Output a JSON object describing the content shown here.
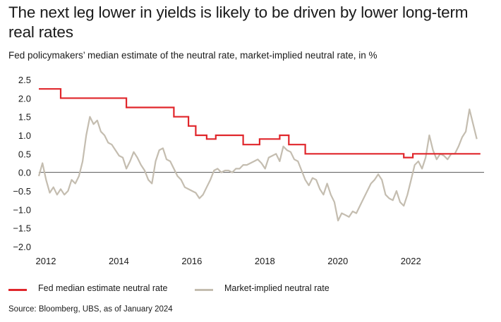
{
  "title": "The next leg lower in yields is likely to be driven by lower long-term real rates",
  "subtitle": "Fed policymakers’ median estimate of the neutral rate, market-implied neutral rate, in %",
  "source": "Source: Bloomberg, UBS, as of January 2024",
  "colors": {
    "fed": "#e0262b",
    "market": "#c4bdb0",
    "zero": "#555555"
  },
  "chart_data": {
    "type": "line",
    "xlim": [
      2012,
      2024.2
    ],
    "ylim": [
      -2.0,
      2.5
    ],
    "yticks": [
      "2.5",
      "2.0",
      "1.5",
      "1.0",
      "0.5",
      "0.0",
      "−0.5",
      "−1.0",
      "−1.5",
      "−2.0"
    ],
    "xticks": [
      "2012",
      "2014",
      "2016",
      "2018",
      "2020",
      "2022"
    ],
    "grid": false,
    "legend_position": "bottom",
    "series": [
      {
        "name": "Fed median estimate neutral rate",
        "kind": "step",
        "x": [
          2012.0,
          2012.6,
          2012.6,
          2014.4,
          2014.4,
          2015.7,
          2015.7,
          2016.1,
          2016.1,
          2016.3,
          2016.3,
          2016.6,
          2016.6,
          2016.85,
          2016.85,
          2017.6,
          2017.6,
          2018.05,
          2018.05,
          2018.6,
          2018.6,
          2018.85,
          2018.85,
          2019.3,
          2019.3,
          2022.0,
          2022.0,
          2022.25,
          2022.25,
          2024.1
        ],
        "y": [
          2.25,
          2.25,
          2.0,
          2.0,
          1.75,
          1.75,
          1.5,
          1.5,
          1.25,
          1.25,
          1.0,
          1.0,
          0.9,
          0.9,
          1.0,
          1.0,
          0.75,
          0.75,
          0.9,
          0.9,
          1.0,
          1.0,
          0.75,
          0.75,
          0.5,
          0.5,
          0.4,
          0.4,
          0.5,
          0.5
        ]
      },
      {
        "name": "Market-implied neutral rate",
        "kind": "line",
        "x": [
          2012.0,
          2012.1,
          2012.2,
          2012.3,
          2012.4,
          2012.5,
          2012.6,
          2012.7,
          2012.8,
          2012.9,
          2013.0,
          2013.1,
          2013.2,
          2013.3,
          2013.4,
          2013.5,
          2013.6,
          2013.7,
          2013.8,
          2013.9,
          2014.0,
          2014.1,
          2014.2,
          2014.3,
          2014.4,
          2014.5,
          2014.6,
          2014.7,
          2014.8,
          2014.9,
          2015.0,
          2015.1,
          2015.2,
          2015.3,
          2015.4,
          2015.5,
          2015.6,
          2015.7,
          2015.8,
          2015.9,
          2016.0,
          2016.1,
          2016.2,
          2016.3,
          2016.4,
          2016.5,
          2016.6,
          2016.7,
          2016.8,
          2016.9,
          2017.0,
          2017.1,
          2017.2,
          2017.3,
          2017.4,
          2017.5,
          2017.6,
          2017.7,
          2017.8,
          2017.9,
          2018.0,
          2018.1,
          2018.2,
          2018.3,
          2018.4,
          2018.5,
          2018.6,
          2018.7,
          2018.8,
          2018.9,
          2019.0,
          2019.1,
          2019.2,
          2019.3,
          2019.4,
          2019.5,
          2019.6,
          2019.7,
          2019.8,
          2019.9,
          2020.0,
          2020.1,
          2020.2,
          2020.3,
          2020.4,
          2020.5,
          2020.6,
          2020.7,
          2020.8,
          2020.9,
          2021.0,
          2021.1,
          2021.2,
          2021.3,
          2021.4,
          2021.5,
          2021.6,
          2021.7,
          2021.8,
          2021.9,
          2022.0,
          2022.1,
          2022.2,
          2022.3,
          2022.4,
          2022.5,
          2022.6,
          2022.7,
          2022.8,
          2022.9,
          2023.0,
          2023.1,
          2023.2,
          2023.3,
          2023.4,
          2023.5,
          2023.6,
          2023.7,
          2023.8,
          2023.9,
          2024.0
        ],
        "y": [
          -0.1,
          0.25,
          -0.2,
          -0.55,
          -0.4,
          -0.6,
          -0.45,
          -0.6,
          -0.5,
          -0.2,
          -0.3,
          -0.1,
          0.3,
          1.0,
          1.5,
          1.3,
          1.4,
          1.1,
          1.0,
          0.8,
          0.75,
          0.6,
          0.45,
          0.4,
          0.1,
          0.3,
          0.55,
          0.4,
          0.2,
          0.05,
          -0.2,
          -0.3,
          0.3,
          0.6,
          0.65,
          0.35,
          0.3,
          0.1,
          -0.1,
          -0.2,
          -0.4,
          -0.45,
          -0.5,
          -0.55,
          -0.7,
          -0.6,
          -0.4,
          -0.2,
          0.05,
          0.1,
          0.0,
          0.05,
          0.05,
          0.0,
          0.1,
          0.1,
          0.2,
          0.2,
          0.25,
          0.3,
          0.35,
          0.25,
          0.1,
          0.4,
          0.45,
          0.5,
          0.3,
          0.7,
          0.6,
          0.55,
          0.35,
          0.3,
          0.05,
          -0.2,
          -0.35,
          -0.15,
          -0.2,
          -0.45,
          -0.6,
          -0.3,
          -0.6,
          -0.8,
          -1.3,
          -1.1,
          -1.15,
          -1.2,
          -1.05,
          -1.1,
          -0.9,
          -0.7,
          -0.5,
          -0.3,
          -0.2,
          -0.05,
          -0.2,
          -0.6,
          -0.7,
          -0.75,
          -0.5,
          -0.8,
          -0.9,
          -0.6,
          -0.2,
          0.2,
          0.3,
          0.1,
          0.4,
          1.0,
          0.6,
          0.35,
          0.5,
          0.45,
          0.35,
          0.5,
          0.5,
          0.7,
          0.95,
          1.1,
          1.7,
          1.3,
          0.9
        ]
      }
    ]
  },
  "legend": [
    {
      "key": "fed",
      "label": "Fed median estimate neutral rate"
    },
    {
      "key": "market",
      "label": "Market-implied neutral rate"
    }
  ]
}
